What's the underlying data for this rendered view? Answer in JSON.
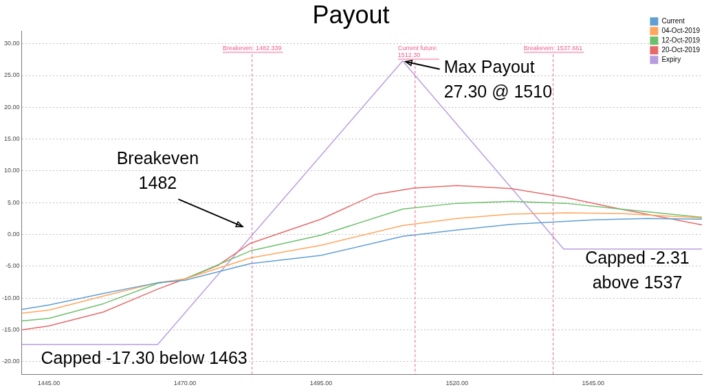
{
  "chart_data": {
    "type": "line",
    "title": "Payout",
    "xlim": [
      1440,
      1565
    ],
    "ylim": [
      -22,
      32
    ],
    "xticks": [
      {
        "value": 1445,
        "label": "1445.00"
      },
      {
        "value": 1470,
        "label": "1470.00"
      },
      {
        "value": 1495,
        "label": "1495.00"
      },
      {
        "value": 1520,
        "label": "1520.00"
      },
      {
        "value": 1545,
        "label": "1545.00"
      }
    ],
    "yticks": [
      {
        "value": -20,
        "label": "-20.00"
      },
      {
        "value": -15,
        "label": "-15.00"
      },
      {
        "value": -10,
        "label": "-10.00"
      },
      {
        "value": -5,
        "label": "-5.00"
      },
      {
        "value": 0,
        "label": "0.00"
      },
      {
        "value": 5,
        "label": "5.00"
      },
      {
        "value": 10,
        "label": "10.00"
      },
      {
        "value": 15,
        "label": "15.00"
      },
      {
        "value": 20,
        "label": "20.00"
      },
      {
        "value": 25,
        "label": "25.00"
      },
      {
        "value": 30,
        "label": "30.00"
      }
    ],
    "grid": "y",
    "legend": "top right",
    "marker": "none",
    "line_style": "solid",
    "series": [
      {
        "name": "Current",
        "color": "#5f9fd3",
        "x": [
          1440,
          1445,
          1455,
          1465,
          1470,
          1482,
          1495,
          1510,
          1520,
          1530,
          1545,
          1555,
          1565
        ],
        "values": [
          -11.8,
          -11.1,
          -9.3,
          -7.6,
          -7.2,
          -4.6,
          -3.3,
          -0.3,
          0.7,
          1.6,
          2.3,
          2.5,
          2.4
        ]
      },
      {
        "name": "04-Oct-2019",
        "color": "#ffa65c",
        "x": [
          1440,
          1445,
          1455,
          1465,
          1470,
          1482,
          1495,
          1510,
          1520,
          1530,
          1540,
          1550,
          1565
        ],
        "values": [
          -12.4,
          -11.9,
          -9.7,
          -7.6,
          -7.0,
          -3.7,
          -1.7,
          1.4,
          2.5,
          3.2,
          3.4,
          3.3,
          2.6
        ]
      },
      {
        "name": "12-Oct-2019",
        "color": "#6cbf6c",
        "x": [
          1440,
          1445,
          1455,
          1465,
          1470,
          1482,
          1495,
          1510,
          1520,
          1530,
          1540,
          1550,
          1565
        ],
        "values": [
          -13.6,
          -13.2,
          -10.9,
          -7.7,
          -7.0,
          -2.6,
          -0.1,
          4.0,
          4.9,
          5.2,
          4.9,
          4.0,
          2.7
        ]
      },
      {
        "name": "20-Oct-2019",
        "color": "#e56a6a",
        "x": [
          1440,
          1445,
          1455,
          1465,
          1470,
          1476,
          1482,
          1495,
          1505,
          1512,
          1520,
          1530,
          1540,
          1550,
          1565
        ],
        "values": [
          -15.0,
          -14.4,
          -12.2,
          -8.6,
          -7.0,
          -4.9,
          -1.4,
          2.4,
          6.3,
          7.3,
          7.7,
          7.2,
          5.8,
          4.0,
          1.5
        ]
      },
      {
        "name": "Expiry",
        "color": "#b89ce0",
        "x": [
          1440,
          1465,
          1510,
          1539.6,
          1565
        ],
        "values": [
          -17.3,
          -17.3,
          27.3,
          -2.3,
          -2.3
        ]
      }
    ],
    "ref_lines": [
      {
        "axis": "x",
        "value": 1482.339,
        "label": "Breakeven: 1482.339",
        "color": "#ec5f8c",
        "line_style": "dashed"
      },
      {
        "axis": "x",
        "value": 1512.3,
        "label": "Current future:\n1512.30",
        "color": "#ec5f8c",
        "line_style": "dashed"
      },
      {
        "axis": "x",
        "value": 1537.661,
        "label": "Breakeven: 1537.661",
        "color": "#ec5f8c",
        "line_style": "dashed"
      }
    ],
    "annotations": [
      {
        "text": "Max Payout\n27.30 @ 1510",
        "x": 1510,
        "y": 27.3
      },
      "Breakeven\n1482",
      "Capped -17.30 below 1463",
      "Capped -2.31\nabove 1537"
    ]
  }
}
